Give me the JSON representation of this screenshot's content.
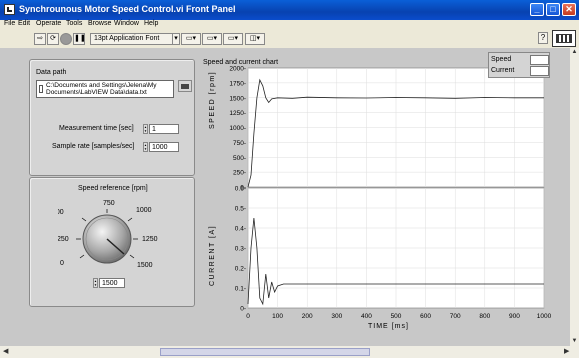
{
  "window": {
    "title": "Synchrounous Motor Speed Control.vi Front Panel",
    "buttons": {
      "minimize": "_",
      "maximize": "□",
      "close": "✕"
    }
  },
  "menu": [
    "File",
    "Edit",
    "Operate",
    "Tools",
    "Browse",
    "Window",
    "Help"
  ],
  "toolbar": {
    "font_selector": "13pt Application Font",
    "icons": [
      "run-arrow-icon",
      "run-continuous-icon",
      "abort-icon",
      "pause-icon",
      "align-icon",
      "distribute-icon",
      "resize-icon",
      "reorder-icon"
    ],
    "help": "?"
  },
  "controls": {
    "data_path_label": "Data path",
    "data_path_value_1": "C:\\Documents and Settings\\Jelena\\My",
    "data_path_value_2": "Documents\\LabVIEW Data\\data.txt",
    "measurement_time_label": "Measurement time [sec]",
    "measurement_time_value": "1",
    "sample_rate_label": "Sample rate [samples/sec]",
    "sample_rate_value": "1000",
    "speed_reference_label": "Speed reference [rpm]",
    "speed_reference_value": "1500",
    "knob_scale": [
      "0",
      "250",
      "500",
      "750",
      "1000",
      "1250",
      "1500"
    ]
  },
  "chart": {
    "title": "Speed and current chart",
    "legend": [
      "Speed",
      "Current"
    ],
    "speed_ylabel": "SPEED [rpm]",
    "current_ylabel": "CURRENT [A]",
    "xlabel": "TIME [ms]"
  },
  "chart_data": {
    "type": "line",
    "title": "Speed and current chart",
    "xlabel": "TIME [ms]",
    "xlim": [
      0,
      1000
    ],
    "x_ticks": [
      0,
      100,
      200,
      300,
      400,
      500,
      600,
      700,
      800,
      900,
      1000
    ],
    "plots": [
      {
        "name": "Speed",
        "ylabel": "SPEED [rpm]",
        "ylim": [
          0,
          2000
        ],
        "y_ticks": [
          "0-",
          "250-",
          "500-",
          "750-",
          "1000-",
          "1250-",
          "1500-",
          "1750-",
          "2000-"
        ],
        "x": [
          0,
          10,
          20,
          30,
          40,
          50,
          60,
          70,
          80,
          100,
          150,
          200,
          300,
          400,
          500,
          600,
          700,
          800,
          900,
          1000
        ],
        "y": [
          0,
          200,
          900,
          1500,
          1800,
          1700,
          1500,
          1420,
          1480,
          1500,
          1490,
          1510,
          1500,
          1495,
          1505,
          1500,
          1490,
          1505,
          1500,
          1500
        ]
      },
      {
        "name": "Current",
        "ylabel": "CURRENT [A]",
        "ylim": [
          0,
          0.6
        ],
        "y_ticks": [
          "0-",
          "0.1-",
          "0.2-",
          "0.3-",
          "0.4-",
          "0.5-",
          "0.6-"
        ],
        "x": [
          0,
          10,
          20,
          30,
          40,
          50,
          60,
          70,
          80,
          90,
          100,
          120,
          150,
          200,
          300,
          400,
          500,
          600,
          700,
          800,
          900,
          1000
        ],
        "y": [
          0.02,
          0.3,
          0.45,
          0.3,
          0.05,
          0.02,
          0.17,
          0.05,
          0.13,
          0.08,
          0.11,
          0.12,
          0.12,
          0.12,
          0.12,
          0.12,
          0.12,
          0.12,
          0.12,
          0.12,
          0.12,
          0.12
        ]
      }
    ]
  }
}
